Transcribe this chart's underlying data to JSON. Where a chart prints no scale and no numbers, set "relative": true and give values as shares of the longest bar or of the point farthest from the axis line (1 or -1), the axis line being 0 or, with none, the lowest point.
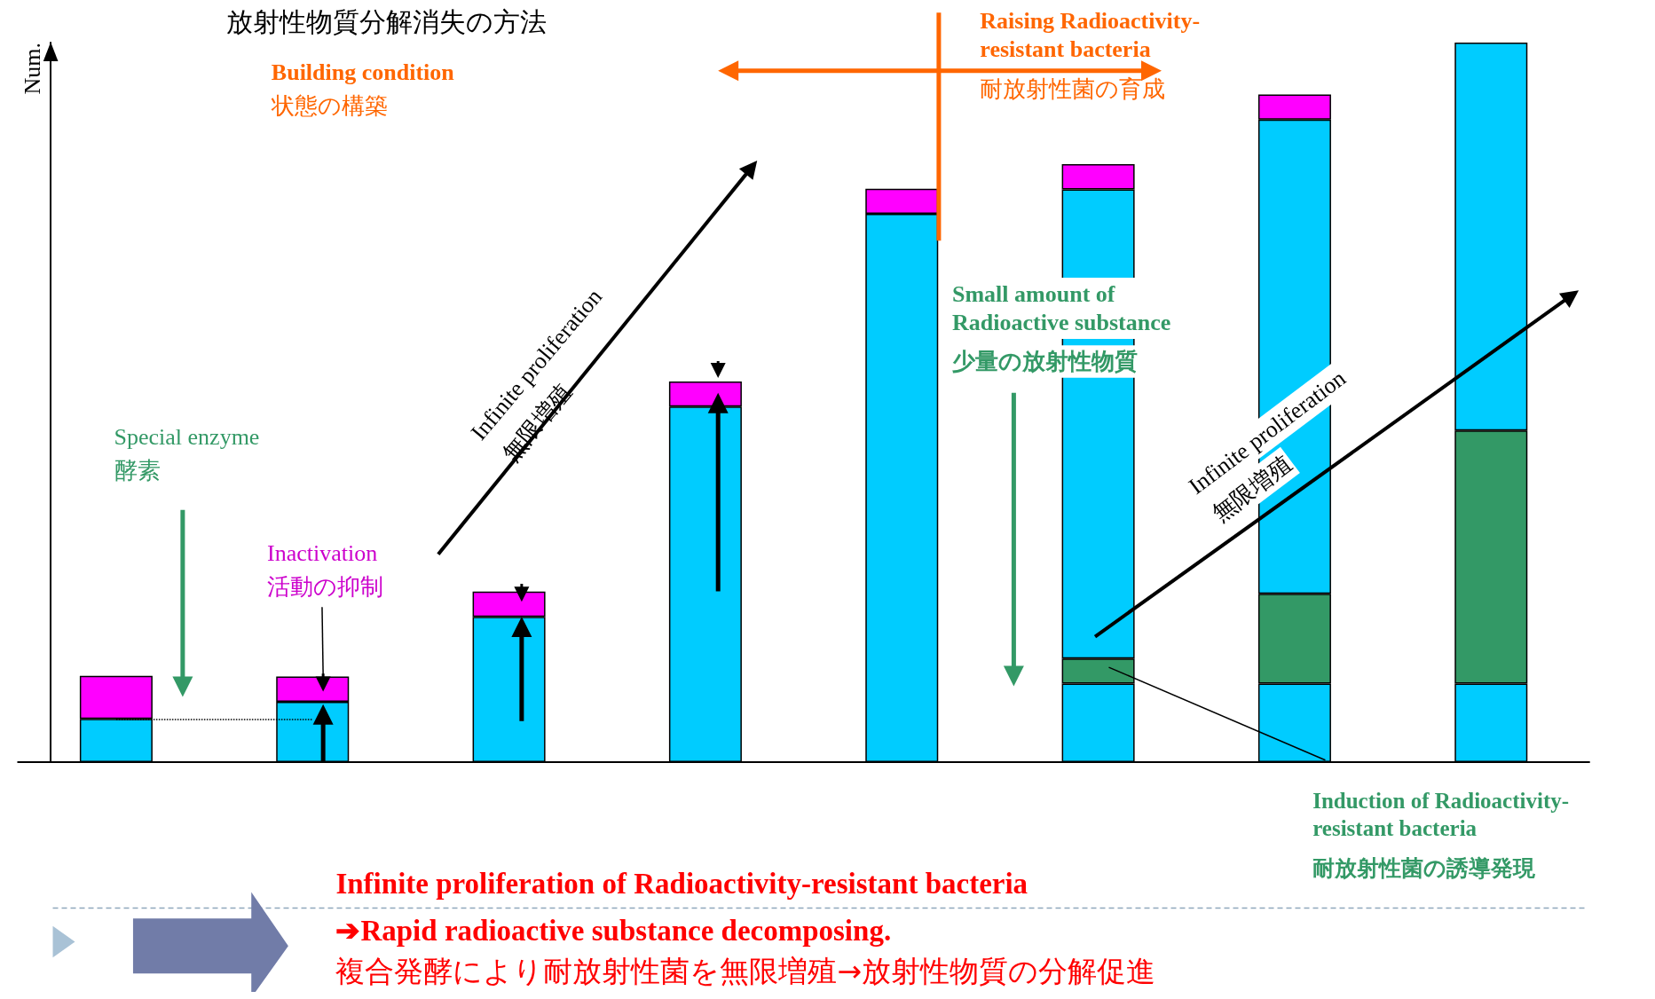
{
  "chart_data": {
    "type": "bar",
    "title": "放射性物質分解消失の方法",
    "ylabel": "Num.",
    "relative": true,
    "stacked": true,
    "grid": false,
    "ref_lines": [
      {
        "axis": "y",
        "value": 0.06,
        "line_style": "dotted",
        "color": "#000000"
      }
    ],
    "categories": [
      null,
      null,
      null,
      null,
      null,
      null,
      null,
      null
    ],
    "series": [
      {
        "color": "#00ccff",
        "values": [
          0.06,
          0.084,
          0.202,
          0.494,
          0.762,
          0.109,
          0.109,
          0.109
        ]
      },
      {
        "color": "#339966",
        "values": [
          null,
          null,
          null,
          null,
          null,
          0.035,
          0.125,
          0.352
        ]
      },
      {
        "color": "#00ccff",
        "values": [
          null,
          null,
          null,
          null,
          null,
          0.652,
          0.659,
          0.539
        ]
      },
      {
        "color": "#ff00ff",
        "values": [
          0.06,
          0.035,
          0.035,
          0.035,
          0.035,
          0.035,
          0.035,
          null
        ]
      }
    ],
    "annotations": [
      "Building condition",
      "状態の構築",
      "Raising Radioactivity-\nresistant bacteria",
      "耐放射性菌の育成",
      "Infinite proliferation",
      "無限増殖",
      "Infinite proliferation",
      "無限増殖",
      "Small amount of\nRadioactive substance",
      "少量の放射性物質",
      "Special enzyme",
      "酵素",
      "Inactivation",
      "活動の抑制",
      "Induction of Radioactivity-\nresistant bacteria",
      "耐放射性菌の誘導発現",
      "Infinite proliferation of Radioactivity-resistant bacteria",
      "➔Rapid radioactive substance decomposing.",
      "複合発酵により耐放射性菌を無限増殖→放射性物質の分解促進"
    ]
  }
}
